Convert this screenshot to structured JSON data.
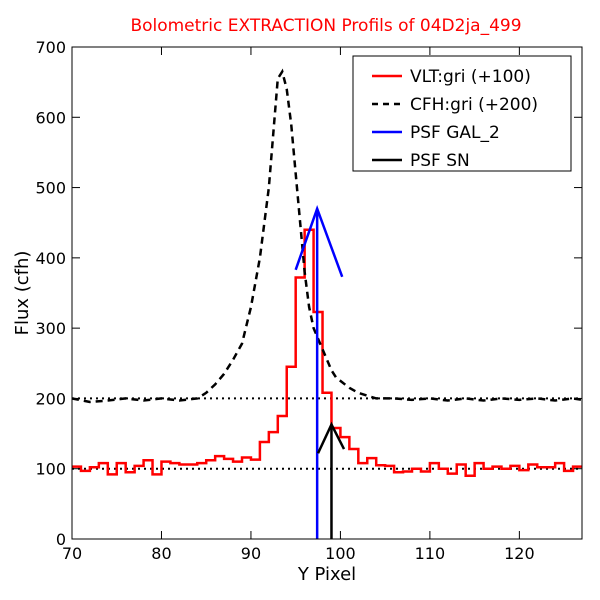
{
  "chart_data": {
    "type": "line",
    "title": "Bolometric EXTRACTION Profils of 04D2ja_499",
    "xlabel": "Y Pixel",
    "ylabel": "Flux (cfh)",
    "xlim": [
      70,
      127
    ],
    "ylim": [
      0,
      700
    ],
    "xticks": [
      70,
      80,
      90,
      100,
      110,
      120
    ],
    "yticks": [
      0,
      100,
      200,
      300,
      400,
      500,
      600,
      700
    ],
    "grid": false,
    "legend_position": "top-right",
    "reference_lines": [
      {
        "y": 100,
        "style": "dotted",
        "color": "#000000"
      },
      {
        "y": 200,
        "style": "dotted",
        "color": "#000000"
      }
    ],
    "series": [
      {
        "name": "VLT:gri (+100)",
        "style": "step",
        "color": "#ff0000",
        "x_start": 70,
        "x_step": 1,
        "values": [
          103,
          97,
          102,
          108,
          92,
          108,
          95,
          104,
          112,
          92,
          110,
          108,
          106,
          106,
          108,
          112,
          118,
          114,
          110,
          116,
          113,
          138,
          152,
          175,
          245,
          372,
          440,
          323,
          208,
          158,
          145,
          128,
          108,
          115,
          105,
          104,
          95,
          96,
          100,
          96,
          108,
          100,
          93,
          106,
          90,
          108,
          100,
          103,
          100,
          104,
          98,
          106,
          102,
          102,
          108,
          97,
          103
        ]
      },
      {
        "name": "CFH:gri (+200)",
        "style": "dashed",
        "color": "#000000",
        "x": [
          70,
          72,
          74,
          76,
          78,
          80,
          82,
          84,
          85,
          86,
          87,
          88,
          89,
          90,
          91,
          92,
          93,
          93.5,
          94,
          94.5,
          95,
          95.5,
          96,
          96.5,
          97,
          97.5,
          98,
          98.5,
          99,
          99.5,
          100,
          101,
          102,
          104,
          106,
          108,
          110,
          112,
          114,
          116,
          118,
          120,
          122,
          124,
          126,
          127
        ],
        "values": [
          200,
          195,
          197,
          200,
          197,
          200,
          197,
          200,
          208,
          220,
          235,
          255,
          278,
          330,
          400,
          500,
          655,
          665,
          640,
          590,
          520,
          450,
          380,
          330,
          300,
          285,
          270,
          255,
          240,
          230,
          225,
          215,
          208,
          200,
          200,
          198,
          200,
          197,
          200,
          197,
          200,
          198,
          200,
          197,
          200,
          198
        ]
      },
      {
        "name": "PSF GAL_2",
        "style": "line",
        "color": "#0000ff",
        "marker": {
          "x": 97.4,
          "y_top": 470,
          "arm_left_x": 95,
          "arm_left_y": 383,
          "arm_right_x": 100.2,
          "arm_right_y": 373
        }
      },
      {
        "name": "PSF SN",
        "style": "line",
        "color": "#000000",
        "marker": {
          "x": 99,
          "y_top": 163,
          "arm_left_x": 97.5,
          "arm_left_y": 122,
          "arm_right_x": 100.4,
          "arm_right_y": 128
        }
      }
    ]
  }
}
